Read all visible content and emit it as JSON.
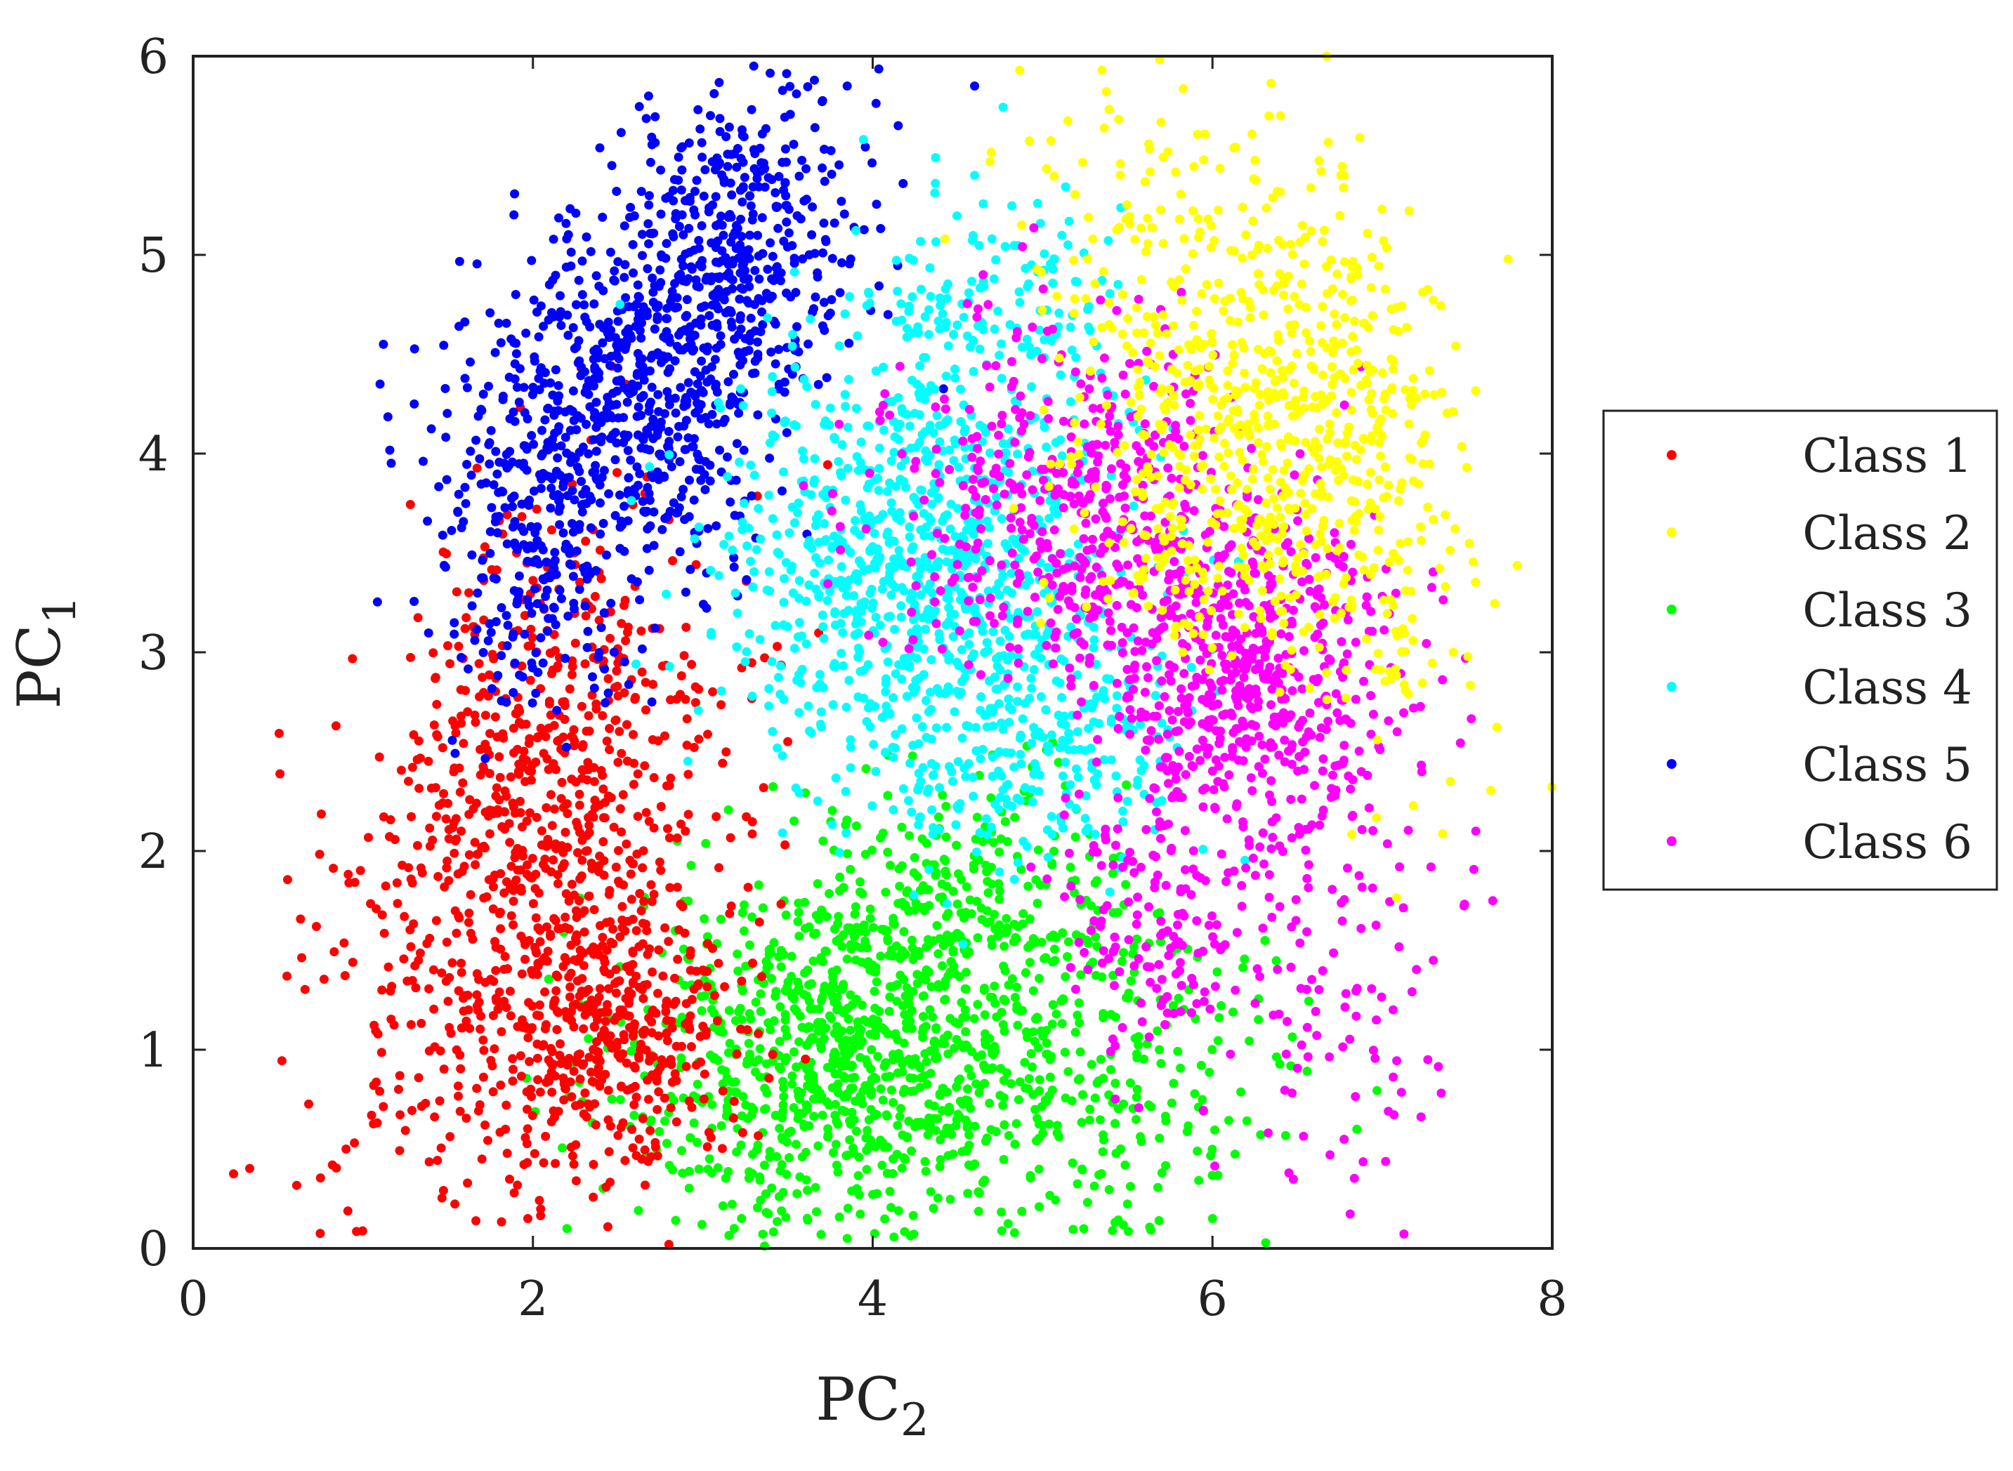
{
  "chart_data": {
    "type": "scatter",
    "xlabel": "PC",
    "xlabel_sub": "2",
    "ylabel": "PC",
    "ylabel_sub": "1",
    "xlim": [
      0,
      8
    ],
    "ylim": [
      0,
      6
    ],
    "xticks": [
      0,
      2,
      4,
      6,
      8
    ],
    "yticks": [
      0,
      1,
      2,
      3,
      4,
      5,
      6
    ],
    "grid": false,
    "legend_position": "right",
    "series": [
      {
        "name": "Class 1",
        "color": "#ff0000",
        "clusters": [
          {
            "cx": 2.0,
            "cy": 2.0,
            "sx": 0.55,
            "sy": 0.85,
            "rho": 0.3,
            "n": 900
          },
          {
            "cx": 2.5,
            "cy": 1.1,
            "sx": 0.35,
            "sy": 0.35,
            "rho": 0.0,
            "n": 350
          }
        ],
        "samples": [
          [
            0.82,
            0.42
          ],
          [
            0.9,
            0.5
          ],
          [
            1.05,
            0.67
          ],
          [
            1.7,
            0.45
          ],
          [
            2.8,
            0.02
          ],
          [
            1.97,
            0.15
          ],
          [
            3.5,
            2.55
          ]
        ]
      },
      {
        "name": "Class 2",
        "color": "#ffff00",
        "clusters": [
          {
            "cx": 6.3,
            "cy": 4.1,
            "sx": 0.55,
            "sy": 0.5,
            "rho": 0.1,
            "n": 650
          },
          {
            "cx": 5.8,
            "cy": 5.2,
            "sx": 0.55,
            "sy": 0.35,
            "rho": 0.0,
            "n": 120
          },
          {
            "cx": 7.0,
            "cy": 3.2,
            "sx": 0.3,
            "sy": 0.5,
            "rho": 0.0,
            "n": 80
          }
        ],
        "samples": [
          [
            5.35,
            5.93
          ],
          [
            6.4,
            5.7
          ],
          [
            7.4,
            2.35
          ],
          [
            7.25,
            4.3
          ]
        ]
      },
      {
        "name": "Class 3",
        "color": "#00ff00",
        "clusters": [
          {
            "cx": 3.85,
            "cy": 1.0,
            "sx": 0.65,
            "sy": 0.45,
            "rho": 0.1,
            "n": 950
          },
          {
            "cx": 4.6,
            "cy": 1.7,
            "sx": 0.45,
            "sy": 0.35,
            "rho": 0.0,
            "n": 250
          },
          {
            "cx": 5.4,
            "cy": 0.8,
            "sx": 0.6,
            "sy": 0.45,
            "rho": 0.0,
            "n": 220
          }
        ],
        "samples": [
          [
            2.2,
            0.1
          ],
          [
            6.0,
            0.15
          ],
          [
            6.85,
            0.6
          ],
          [
            2.85,
            2.05
          ],
          [
            3.85,
            0.05
          ]
        ]
      },
      {
        "name": "Class 4",
        "color": "#00ffff",
        "clusters": [
          {
            "cx": 4.3,
            "cy": 3.4,
            "sx": 0.6,
            "sy": 0.55,
            "rho": 0.0,
            "n": 900
          },
          {
            "cx": 4.7,
            "cy": 4.7,
            "sx": 0.4,
            "sy": 0.35,
            "rho": 0.0,
            "n": 150
          },
          {
            "cx": 5.0,
            "cy": 2.5,
            "sx": 0.45,
            "sy": 0.3,
            "rho": 0.0,
            "n": 200
          }
        ],
        "samples": [
          [
            3.05,
            3.1
          ],
          [
            3.9,
            3.2
          ],
          [
            4.6,
            5.4
          ],
          [
            5.5,
            2.25
          ]
        ]
      },
      {
        "name": "Class 5",
        "color": "#0000ff",
        "clusters": [
          {
            "cx": 2.55,
            "cy": 4.3,
            "sx": 0.5,
            "sy": 0.55,
            "rho": 0.35,
            "n": 850
          },
          {
            "cx": 3.25,
            "cy": 5.1,
            "sx": 0.35,
            "sy": 0.4,
            "rho": 0.2,
            "n": 300
          },
          {
            "cx": 2.0,
            "cy": 3.3,
            "sx": 0.3,
            "sy": 0.3,
            "rho": 0.0,
            "n": 100
          }
        ],
        "samples": [
          [
            1.1,
            4.35
          ],
          [
            1.12,
            4.55
          ],
          [
            3.3,
            5.95
          ],
          [
            3.85,
            5.85
          ],
          [
            4.6,
            5.85
          ],
          [
            4.15,
            5.65
          ],
          [
            2.7,
            2.75
          ]
        ]
      },
      {
        "name": "Class 6",
        "color": "#ff00ff",
        "clusters": [
          {
            "cx": 6.2,
            "cy": 2.85,
            "sx": 0.45,
            "sy": 0.45,
            "rho": 0.0,
            "n": 600
          },
          {
            "cx": 5.2,
            "cy": 3.7,
            "sx": 0.55,
            "sy": 0.45,
            "rho": 0.0,
            "n": 500
          },
          {
            "cx": 5.6,
            "cy": 1.6,
            "sx": 0.35,
            "sy": 0.35,
            "rho": 0.0,
            "n": 150
          },
          {
            "cx": 6.8,
            "cy": 1.2,
            "sx": 0.35,
            "sy": 0.5,
            "rho": 0.0,
            "n": 90
          }
        ],
        "samples": [
          [
            7.65,
            1.75
          ],
          [
            7.55,
            2.1
          ],
          [
            6.45,
            0.38
          ],
          [
            7.3,
            1.45
          ],
          [
            4.65,
            4.9
          ]
        ]
      }
    ]
  }
}
